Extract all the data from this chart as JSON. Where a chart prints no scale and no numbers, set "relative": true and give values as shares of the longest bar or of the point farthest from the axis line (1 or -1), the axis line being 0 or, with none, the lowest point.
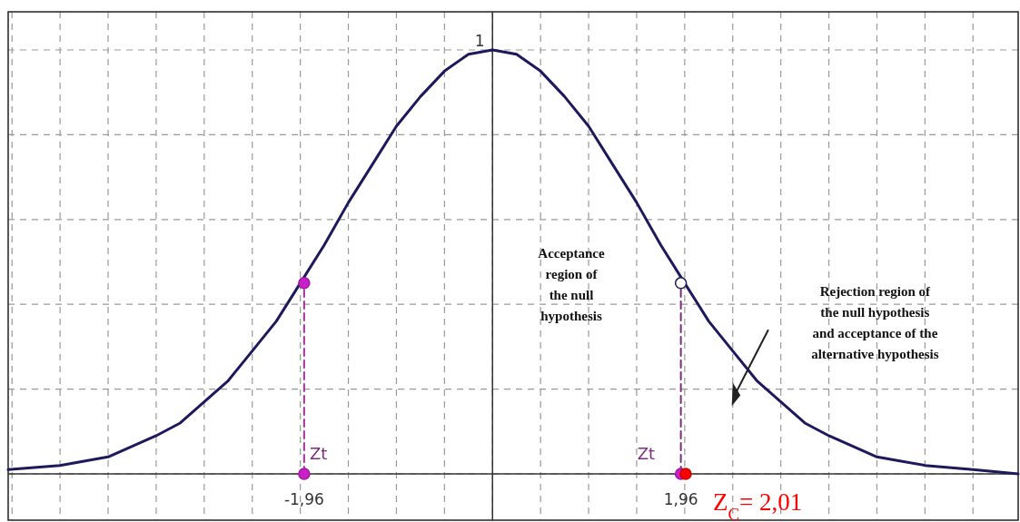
{
  "chart_data": {
    "type": "line",
    "relative": true,
    "xlim": [
      -5.04,
      5.47
    ],
    "grid": true,
    "xticks": [
      {
        "value": -5,
        "label": null
      },
      {
        "value": -4.5,
        "label": null
      },
      {
        "value": -4,
        "label": null
      },
      {
        "value": -3.5,
        "label": null
      },
      {
        "value": -3,
        "label": null
      },
      {
        "value": -2.5,
        "label": null
      },
      {
        "value": -2,
        "label": null
      },
      {
        "value": -1.96,
        "label": "-1,96"
      },
      {
        "value": -1.5,
        "label": null
      },
      {
        "value": -1,
        "label": null
      },
      {
        "value": -0.5,
        "label": null
      },
      {
        "value": 0,
        "label": null
      },
      {
        "value": 0.5,
        "label": null
      },
      {
        "value": 1,
        "label": null
      },
      {
        "value": 1.5,
        "label": null
      },
      {
        "value": 1.96,
        "label": "1,96"
      },
      {
        "value": 2,
        "label": null
      },
      {
        "value": 2.5,
        "label": null
      },
      {
        "value": 3,
        "label": null
      },
      {
        "value": 3.5,
        "label": null
      },
      {
        "value": 4,
        "label": null
      },
      {
        "value": 4.5,
        "label": null
      },
      {
        "value": 5,
        "label": null
      }
    ],
    "series": [
      {
        "color": "#1c1a5c",
        "x": [
          -5.04,
          -4.5,
          -4,
          -3.5,
          -3.25,
          -3,
          -2.75,
          -2.5,
          -2.25,
          -2,
          -1.75,
          -1.5,
          -1.25,
          -1,
          -0.75,
          -0.5,
          -0.25,
          0,
          0.25,
          0.5,
          0.75,
          1,
          1.25,
          1.5,
          1.75,
          2,
          2.25,
          2.5,
          2.75,
          3,
          3.25,
          3.5,
          4,
          4.5,
          5,
          5.47
        ],
        "values": [
          0.01,
          0.02,
          0.04,
          0.09,
          0.12,
          0.17,
          0.22,
          0.29,
          0.36,
          0.45,
          0.54,
          0.64,
          0.73,
          0.82,
          0.89,
          0.95,
          0.99,
          1,
          0.99,
          0.95,
          0.89,
          0.82,
          0.73,
          0.64,
          0.54,
          0.45,
          0.36,
          0.29,
          0.22,
          0.17,
          0.12,
          0.09,
          0.04,
          0.02,
          0.01,
          0
        ]
      },
      {
        "color": "#a8329b",
        "line_style": "dashed",
        "x": [
          -1.96,
          -1.96
        ],
        "values": [
          0,
          0.45
        ]
      },
      {
        "color": "#7a2c7e",
        "line_style": "dashed",
        "x": [
          1.96,
          1.96
        ],
        "values": [
          0,
          0.45
        ]
      },
      {
        "type": "scatter",
        "color": "#c81fc8",
        "x": [
          -1.96,
          -1.96,
          1.96
        ],
        "values": [
          0.45,
          0,
          0
        ]
      },
      {
        "type": "scatter",
        "color": "#ffffff",
        "x": [
          1.96
        ],
        "values": [
          0.45
        ]
      },
      {
        "type": "scatter",
        "color": "#ff0000",
        "x": [
          2.01
        ],
        "values": [
          0
        ]
      }
    ],
    "annotations": [
      {
        "text": "1",
        "x": 0,
        "y": 1
      },
      {
        "text": "Zt",
        "x": -1.96,
        "y": 0
      },
      {
        "text": "Zt",
        "x": 1.96,
        "y": 0
      },
      {
        "text": "Z$_{C}$= 2,01",
        "x": 2.01,
        "y": 0
      },
      "Acceptance\nregion of\nthe null\nhypothesis",
      "Rejection region of\nthe null hypothesis\nand acceptance of the\nalternative hypothesis"
    ]
  }
}
